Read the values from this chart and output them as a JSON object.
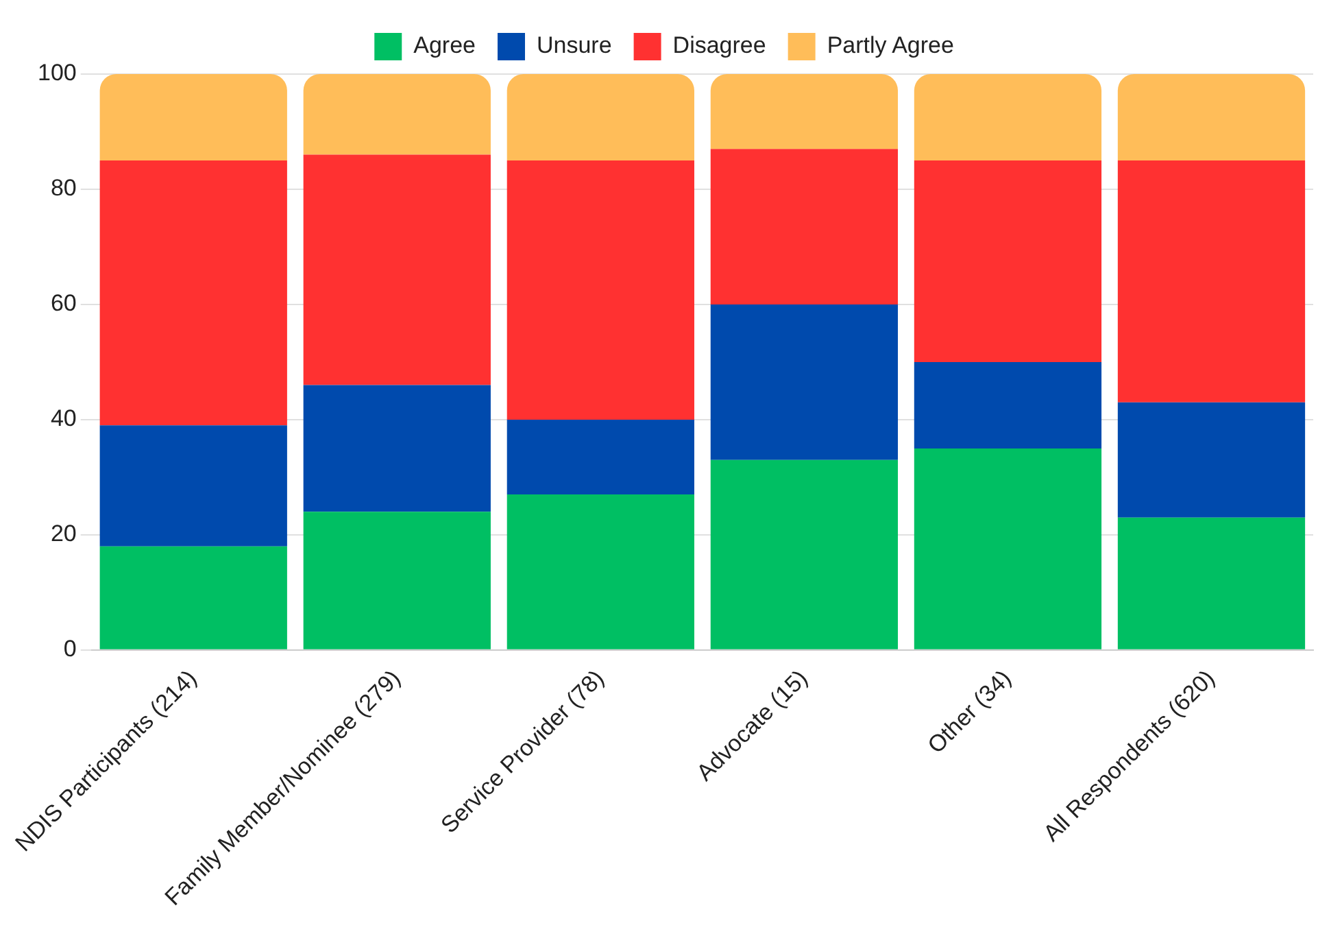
{
  "chart_data": {
    "type": "bar",
    "stacked": true,
    "categories": [
      "NDIS Participants (214)",
      "Family Member/Nominee (279)",
      "Service Provider (78)",
      "Advocate (15)",
      "Other (34)",
      "All Respondents (620)"
    ],
    "series": [
      {
        "name": "Agree",
        "color": "#00bf63",
        "values": [
          18,
          24,
          27,
          33,
          35,
          23
        ]
      },
      {
        "name": "Unsure",
        "color": "#004aad",
        "values": [
          21,
          22,
          13,
          27,
          15,
          20
        ]
      },
      {
        "name": "Disagree",
        "color": "#ff3131",
        "values": [
          46,
          40,
          45,
          27,
          35,
          42
        ]
      },
      {
        "name": "Partly Agree",
        "color": "#ffbd59",
        "values": [
          15,
          14,
          15,
          13,
          15,
          15
        ]
      }
    ],
    "ylim": [
      0,
      100
    ],
    "yticks": [
      0,
      20,
      40,
      60,
      80,
      100
    ],
    "grid": "y",
    "legend": "top"
  }
}
